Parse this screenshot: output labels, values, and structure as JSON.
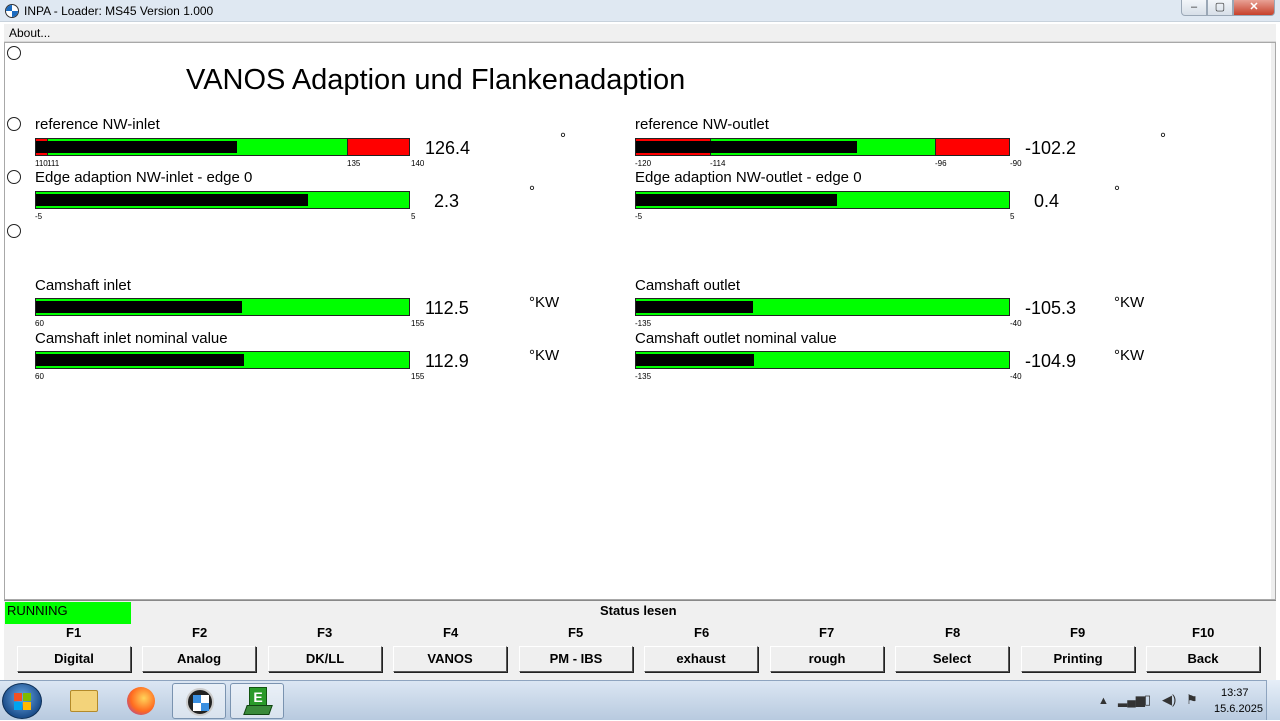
{
  "window": {
    "title": "INPA - Loader:  MS45 Version 1.000",
    "min": "–",
    "max": "▢",
    "close": "✕"
  },
  "menu": {
    "about": "About..."
  },
  "page": {
    "title": "VANOS Adaption und Flankenadaption"
  },
  "gauges": {
    "ref_inlet": {
      "label": "reference NW-inlet",
      "value": "126.4",
      "unit": "°",
      "min": "110",
      "t2": "111",
      "t3": "135",
      "max": "140",
      "level": 0.54
    },
    "ref_outlet": {
      "label": "reference NW-outlet",
      "value": "-102.2",
      "unit": "°",
      "min": "-120",
      "t2": "-114",
      "t3": "-96",
      "max": "-90",
      "level": 0.593
    },
    "edge_inlet": {
      "label": "Edge adaption NW-inlet - edge 0",
      "value": "2.3",
      "unit": "°",
      "min": "-5",
      "max": "5",
      "level": 0.73
    },
    "edge_outlet": {
      "label": "Edge adaption NW-outlet - edge 0",
      "value": "0.4",
      "unit": "°",
      "min": "-5",
      "max": "5",
      "level": 0.54
    },
    "cam_inlet": {
      "label": "Camshaft inlet",
      "value": "112.5",
      "unit": "°KW",
      "min": "60",
      "max": "155",
      "level": 0.553
    },
    "cam_outlet": {
      "label": "Camshaft outlet",
      "value": "-105.3",
      "unit": "°KW",
      "min": "-135",
      "max": "-40",
      "level": 0.313
    },
    "cam_inlet_nom": {
      "label": "Camshaft inlet nominal value",
      "value": "112.9",
      "unit": "°KW",
      "min": "60",
      "max": "155",
      "level": 0.557
    },
    "cam_outlet_nom": {
      "label": "Camshaft outlet nominal value",
      "value": "-104.9",
      "unit": "°KW",
      "min": "-135",
      "max": "-40",
      "level": 0.317
    }
  },
  "status": {
    "running": "RUNNING",
    "title": "Status lesen"
  },
  "fkeys": [
    {
      "key": "F1",
      "label": "Digital"
    },
    {
      "key": "F2",
      "label": "Analog"
    },
    {
      "key": "F3",
      "label": "DK/LL"
    },
    {
      "key": "F4",
      "label": "VANOS"
    },
    {
      "key": "F5",
      "label": "PM - IBS"
    },
    {
      "key": "F6",
      "label": "exhaust"
    },
    {
      "key": "F7",
      "label": "rough"
    },
    {
      "key": "F8",
      "label": "Select"
    },
    {
      "key": "F9",
      "label": "Printing"
    },
    {
      "key": "F10",
      "label": "Back"
    }
  ],
  "taskbar": {
    "time": "13:37",
    "date": "15.6.2025",
    "ediabas_letter": "E"
  }
}
